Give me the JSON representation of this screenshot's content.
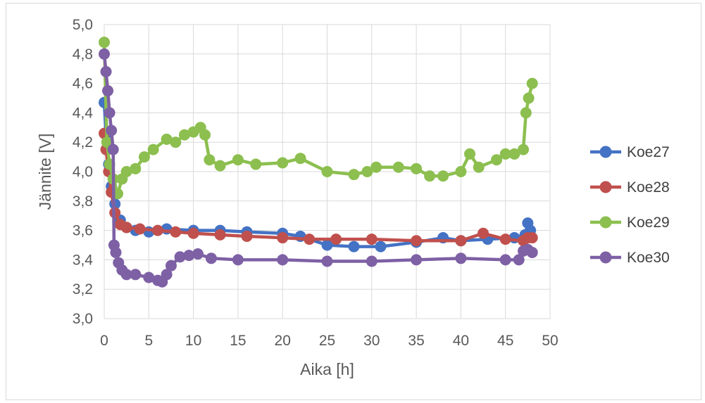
{
  "chart_data": {
    "type": "line",
    "title": "",
    "xlabel": "Aika [h]",
    "ylabel": "Jännite [V]",
    "xlim": [
      0,
      50
    ],
    "ylim": [
      3.0,
      5.0
    ],
    "xticks": [
      "0",
      "5",
      "10",
      "15",
      "20",
      "25",
      "30",
      "35",
      "40",
      "45",
      "50"
    ],
    "yticks": [
      "3,0",
      "3,2",
      "3,4",
      "3,6",
      "3,8",
      "4,0",
      "4,2",
      "4,4",
      "4,6",
      "4,8",
      "5,0"
    ],
    "grid": true,
    "legend_position": "right",
    "series": [
      {
        "name": "Koe27",
        "color": "#4472c4",
        "x": [
          0,
          0.2,
          0.5,
          0.8,
          1.2,
          1.8,
          2.5,
          3.5,
          5,
          7,
          10,
          13,
          16,
          20,
          22,
          25,
          28,
          31,
          35,
          38,
          40,
          43,
          46,
          47.2,
          47.5,
          47.8
        ],
        "y": [
          4.47,
          4.25,
          4.05,
          3.9,
          3.78,
          3.67,
          3.62,
          3.6,
          3.59,
          3.61,
          3.6,
          3.6,
          3.59,
          3.58,
          3.56,
          3.5,
          3.49,
          3.49,
          3.52,
          3.55,
          3.53,
          3.54,
          3.55,
          3.57,
          3.65,
          3.6
        ]
      },
      {
        "name": "Koe28",
        "color": "#c0504d",
        "x": [
          0,
          0.2,
          0.5,
          0.8,
          1.2,
          1.8,
          2.5,
          4,
          6,
          8,
          10,
          13,
          16,
          20,
          23,
          26,
          30,
          35,
          40,
          42.5,
          45,
          47,
          47.5,
          48
        ],
        "y": [
          4.26,
          4.15,
          4.0,
          3.86,
          3.72,
          3.64,
          3.62,
          3.61,
          3.6,
          3.59,
          3.58,
          3.57,
          3.56,
          3.55,
          3.54,
          3.54,
          3.54,
          3.53,
          3.53,
          3.58,
          3.54,
          3.53,
          3.55,
          3.55
        ]
      },
      {
        "name": "Koe29",
        "color": "#8cbf4f",
        "x": [
          0,
          0.3,
          0.6,
          1,
          1.5,
          2,
          2.5,
          3.5,
          4.5,
          5.5,
          7,
          8,
          9,
          10,
          10.8,
          11.3,
          11.8,
          13,
          15,
          17,
          20,
          22,
          25,
          28,
          29.5,
          30.5,
          33,
          35,
          36.5,
          38,
          40,
          41,
          42,
          44,
          45,
          46,
          47,
          47.3,
          47.6,
          48
        ],
        "y": [
          4.88,
          4.2,
          4.05,
          3.95,
          3.85,
          3.95,
          4.0,
          4.02,
          4.1,
          4.15,
          4.22,
          4.2,
          4.25,
          4.27,
          4.3,
          4.25,
          4.08,
          4.04,
          4.08,
          4.05,
          4.06,
          4.09,
          4.0,
          3.98,
          4.0,
          4.03,
          4.03,
          4.02,
          3.97,
          3.97,
          4.0,
          4.12,
          4.03,
          4.08,
          4.12,
          4.12,
          4.15,
          4.4,
          4.5,
          4.6
        ]
      },
      {
        "name": "Koe30",
        "color": "#7e60a5",
        "x": [
          0,
          0.2,
          0.4,
          0.6,
          0.8,
          1.0,
          1.1,
          1.3,
          1.6,
          2,
          2.5,
          3.5,
          5,
          6,
          6.5,
          7,
          7.5,
          8.5,
          9.5,
          10.5,
          12,
          15,
          20,
          25,
          30,
          35,
          40,
          45,
          46.5,
          47,
          47.5,
          48
        ],
        "y": [
          4.8,
          4.68,
          4.55,
          4.4,
          4.28,
          4.15,
          3.5,
          3.45,
          3.38,
          3.33,
          3.3,
          3.3,
          3.28,
          3.26,
          3.25,
          3.3,
          3.36,
          3.42,
          3.43,
          3.44,
          3.41,
          3.4,
          3.4,
          3.39,
          3.39,
          3.4,
          3.41,
          3.4,
          3.4,
          3.46,
          3.47,
          3.45
        ]
      }
    ]
  }
}
